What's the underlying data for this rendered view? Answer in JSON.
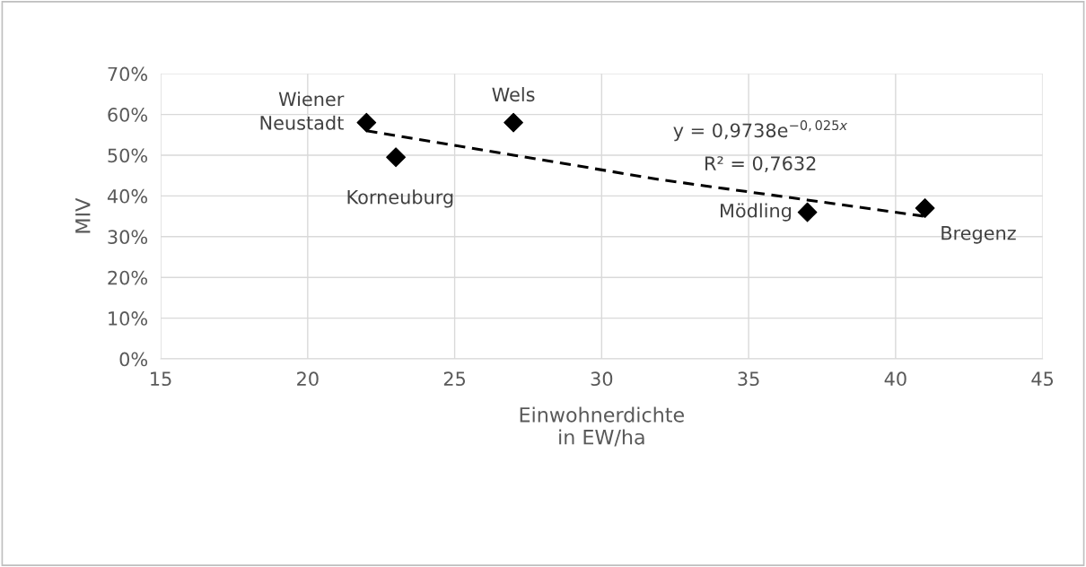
{
  "chart_data": {
    "type": "scatter",
    "xlabel": "Einwohnerdichte\nin EW/ha",
    "ylabel": "MIV",
    "xlim": [
      15,
      45
    ],
    "xticks": [
      15,
      20,
      25,
      30,
      35,
      40,
      45
    ],
    "ylim": [
      0,
      70
    ],
    "yticks": [
      {
        "value": 0,
        "label": "0%"
      },
      {
        "value": 10,
        "label": "10%"
      },
      {
        "value": 20,
        "label": "20%"
      },
      {
        "value": 30,
        "label": "30%"
      },
      {
        "value": 40,
        "label": "40%"
      },
      {
        "value": 50,
        "label": "50%"
      },
      {
        "value": 60,
        "label": "60%"
      },
      {
        "value": 70,
        "label": "70%"
      }
    ],
    "grid": true,
    "legend": false,
    "series": [
      {
        "color": "#000000",
        "marker": "diamond",
        "x": [
          22,
          23,
          27,
          37,
          41
        ],
        "values": [
          58,
          49.5,
          58,
          36,
          37
        ]
      },
      {
        "type": "line",
        "color": "#000000",
        "line_style": "dashed",
        "marker": "none",
        "x": [
          22,
          27,
          32,
          37,
          41
        ],
        "values": [
          56,
          50,
          44,
          39,
          35
        ]
      }
    ],
    "annotations": [
      {
        "text": "Wiener\nNeustadt",
        "x": 22,
        "y": 58
      },
      {
        "text": "Korneuburg",
        "x": 23,
        "y": 49.5
      },
      {
        "text": "Wels",
        "x": 27,
        "y": 58
      },
      {
        "text": "Mödling",
        "x": 37,
        "y": 36
      },
      {
        "text": "Bregenz",
        "x": 41,
        "y": 37
      },
      "y = 0,9738e$^{−0,025x}$",
      "R² = 0,7632"
    ]
  }
}
